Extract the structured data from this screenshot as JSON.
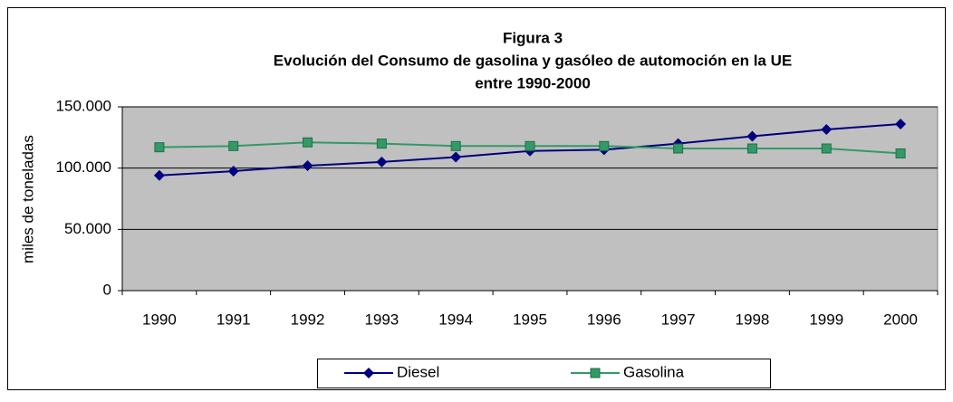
{
  "chart_data": {
    "type": "line",
    "title": "Figura 3",
    "subtitle": [
      "Evolución del Consumo de gasolina y gasóleo de automoción en la UE",
      "entre 1990-2000"
    ],
    "ylabel": "miles de toneladas",
    "categories": [
      "1990",
      "1991",
      "1992",
      "1993",
      "1994",
      "1995",
      "1996",
      "1997",
      "1998",
      "1999",
      "2000"
    ],
    "series": [
      {
        "name": "Diesel",
        "color": "#000080",
        "marker": "diamond",
        "values": [
          94000,
          97500,
          102000,
          105000,
          109000,
          114000,
          115000,
          120000,
          126000,
          131500,
          136000
        ]
      },
      {
        "name": "Gasolina",
        "color": "#339966",
        "marker": "square",
        "values": [
          117000,
          118000,
          121000,
          120000,
          118000,
          118000,
          118000,
          116000,
          116000,
          116000,
          112000
        ]
      }
    ],
    "ylim": [
      0,
      150000
    ],
    "yticks": [
      0,
      {
        "value": 50000,
        "label": "50.000"
      },
      {
        "value": 100000,
        "label": "100.000"
      },
      {
        "value": 150000,
        "label": "150.000"
      }
    ],
    "grid": true,
    "plot_background": "#c0c0c0",
    "legend": "bottom"
  }
}
